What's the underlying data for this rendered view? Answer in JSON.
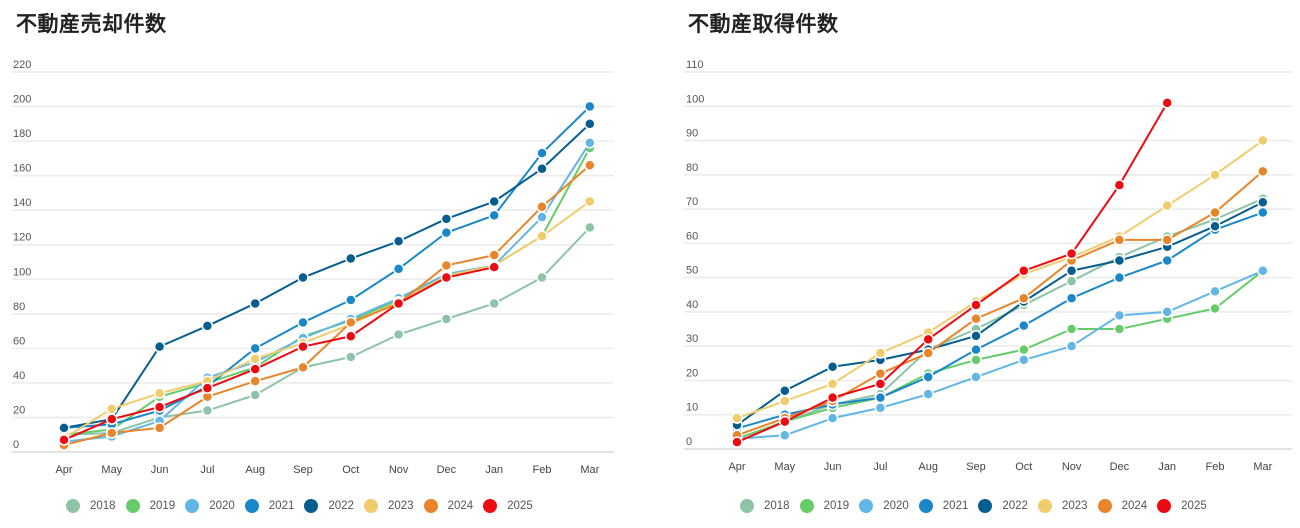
{
  "chart_data": [
    {
      "type": "line",
      "title": "不動産売却件数",
      "xlabel": "",
      "ylabel": "",
      "categories": [
        "Apr",
        "May",
        "Jun",
        "Jul",
        "Aug",
        "Sep",
        "Oct",
        "Nov",
        "Dec",
        "Jan",
        "Feb",
        "Mar"
      ],
      "ylim": [
        0,
        220
      ],
      "yticks": [
        "0",
        "20",
        "40",
        "60",
        "80",
        "100",
        "120",
        "140",
        "160",
        "180",
        "200",
        "220"
      ],
      "grid": true,
      "legend_position": "bottom",
      "series": [
        {
          "name": "2018",
          "color": "#8dc4a8",
          "values": [
            10,
            11,
            20,
            24,
            33,
            49,
            55,
            68,
            77,
            86,
            101,
            130
          ]
        },
        {
          "name": "2019",
          "color": "#66cc6a",
          "values": [
            10,
            13,
            32,
            40,
            49,
            67,
            76,
            88,
            102,
            108,
            125,
            176
          ]
        },
        {
          "name": "2020",
          "color": "#62b6e6",
          "values": [
            6,
            9,
            18,
            43,
            52,
            66,
            77,
            89,
            103,
            108,
            136,
            179
          ]
        },
        {
          "name": "2021",
          "color": "#1a87c8",
          "values": [
            14,
            16,
            24,
            38,
            60,
            75,
            88,
            106,
            127,
            137,
            173,
            200
          ]
        },
        {
          "name": "2022",
          "color": "#065e8f",
          "values": [
            14,
            19,
            61,
            73,
            86,
            101,
            112,
            122,
            135,
            145,
            164,
            190
          ]
        },
        {
          "name": "2023",
          "color": "#f1cc6c",
          "values": [
            8,
            25,
            34,
            41,
            54,
            63,
            74,
            87,
            102,
            108,
            125,
            145
          ]
        },
        {
          "name": "2024",
          "color": "#e8852a",
          "values": [
            4,
            11,
            14,
            32,
            41,
            49,
            75,
            86,
            108,
            114,
            142,
            166
          ]
        },
        {
          "name": "2025",
          "color": "#ee0a12",
          "values": [
            7,
            19,
            26,
            37,
            48,
            61,
            67,
            86,
            101,
            107,
            null,
            null
          ]
        }
      ]
    },
    {
      "type": "line",
      "title": "不動産取得件数",
      "xlabel": "",
      "ylabel": "",
      "categories": [
        "Apr",
        "May",
        "Jun",
        "Jul",
        "Aug",
        "Sep",
        "Oct",
        "Nov",
        "Dec",
        "Jan",
        "Feb",
        "Mar"
      ],
      "ylim": [
        0,
        110
      ],
      "yticks": [
        "0",
        "10",
        "20",
        "30",
        "40",
        "50",
        "60",
        "70",
        "80",
        "90",
        "100",
        "110"
      ],
      "grid": true,
      "legend_position": "bottom",
      "series": [
        {
          "name": "2018",
          "color": "#8dc4a8",
          "values": [
            3,
            8,
            13,
            16,
            29,
            35,
            42,
            49,
            56,
            62,
            67,
            73
          ]
        },
        {
          "name": "2019",
          "color": "#66cc6a",
          "values": [
            3,
            8,
            12,
            15,
            22,
            26,
            29,
            35,
            35,
            38,
            41,
            52
          ]
        },
        {
          "name": "2020",
          "color": "#62b6e6",
          "values": [
            3,
            4,
            9,
            12,
            16,
            21,
            26,
            30,
            39,
            40,
            46,
            52
          ]
        },
        {
          "name": "2021",
          "color": "#1a87c8",
          "values": [
            6,
            10,
            13,
            15,
            21,
            29,
            36,
            44,
            50,
            55,
            64,
            69
          ]
        },
        {
          "name": "2022",
          "color": "#065e8f",
          "values": [
            7,
            17,
            24,
            26,
            29,
            33,
            43,
            52,
            55,
            59,
            65,
            72
          ]
        },
        {
          "name": "2023",
          "color": "#f1cc6c",
          "values": [
            9,
            14,
            19,
            28,
            34,
            43,
            51,
            56,
            62,
            71,
            80,
            90
          ]
        },
        {
          "name": "2024",
          "color": "#e8852a",
          "values": [
            4,
            9,
            14,
            22,
            28,
            38,
            44,
            55,
            61,
            61,
            69,
            81
          ]
        },
        {
          "name": "2025",
          "color": "#ee0a12",
          "values": [
            2,
            8,
            15,
            19,
            32,
            42,
            52,
            57,
            77,
            101,
            null,
            null
          ]
        }
      ]
    }
  ]
}
